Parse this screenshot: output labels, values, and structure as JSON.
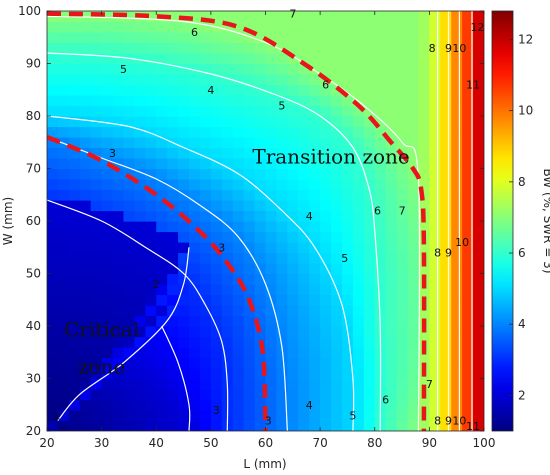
{
  "chart_data": {
    "type": "heatmap",
    "xlabel": "L (mm)",
    "ylabel": "W (mm)",
    "colorbar_label": "BW (%, SWR = 3)",
    "xlim": [
      20,
      100
    ],
    "ylim": [
      20,
      100
    ],
    "clim": [
      1,
      12.8
    ],
    "x_ticks": [
      20,
      30,
      40,
      50,
      60,
      70,
      80,
      90,
      100
    ],
    "y_ticks": [
      20,
      30,
      40,
      50,
      60,
      70,
      80,
      90,
      100
    ],
    "colorbar_ticks": [
      2,
      4,
      6,
      8,
      10,
      12
    ],
    "colormap": "jet",
    "contour_line_color": "#ffffff",
    "boundary_line_color": "#e8161b",
    "contour_levels": [
      {
        "level": 2,
        "points": [
          [
            22,
            22
          ],
          [
            26,
            27
          ],
          [
            34,
            33
          ],
          [
            42,
            41
          ],
          [
            45,
            48
          ],
          [
            46,
            55
          ],
          [
            46,
            20
          ]
        ]
      },
      {
        "level": 3,
        "points": [
          [
            20,
            64
          ],
          [
            30,
            60
          ],
          [
            38,
            55
          ],
          [
            45,
            50
          ],
          [
            49,
            44
          ],
          [
            52,
            37
          ],
          [
            53,
            29
          ],
          [
            53,
            20
          ]
        ]
      },
      {
        "level": 4,
        "points": [
          [
            20,
            76
          ],
          [
            30,
            72
          ],
          [
            40,
            68
          ],
          [
            48,
            63
          ],
          [
            55,
            57
          ],
          [
            60,
            48
          ],
          [
            63,
            36
          ],
          [
            64,
            20
          ]
        ]
      },
      {
        "level": 5,
        "points": [
          [
            20,
            80
          ],
          [
            35,
            78
          ],
          [
            45,
            74
          ],
          [
            55,
            69
          ],
          [
            63,
            62
          ],
          [
            69,
            55
          ],
          [
            74,
            44
          ],
          [
            76,
            30
          ],
          [
            76,
            20
          ]
        ]
      },
      {
        "level": 6,
        "points": [
          [
            20,
            92
          ],
          [
            35,
            91
          ],
          [
            50,
            88
          ],
          [
            62,
            84
          ],
          [
            70,
            80
          ],
          [
            76,
            74
          ],
          [
            79,
            66
          ],
          [
            80,
            58
          ],
          [
            81,
            40
          ],
          [
            81,
            20
          ]
        ]
      },
      {
        "level": 7,
        "points": [
          [
            20,
            99
          ],
          [
            45,
            98
          ],
          [
            60,
            94
          ],
          [
            70,
            88
          ],
          [
            78,
            82
          ],
          [
            85,
            75
          ],
          [
            88,
            68
          ],
          [
            88,
            20
          ]
        ]
      },
      {
        "level": 8,
        "points": [
          [
            91.5,
            100
          ],
          [
            91.5,
            20
          ]
        ]
      },
      {
        "level": 9,
        "points": [
          [
            93.5,
            100
          ],
          [
            93.5,
            20
          ]
        ]
      },
      {
        "level": 10,
        "points": [
          [
            95.5,
            100
          ],
          [
            95.5,
            20
          ]
        ]
      },
      {
        "level": 11,
        "points": [
          [
            97.8,
            100
          ],
          [
            97.8,
            20
          ]
        ]
      }
    ],
    "contour_labels": [
      {
        "text": "2",
        "x": 40,
        "y": 48
      },
      {
        "text": "2",
        "x": 22,
        "y": 23
      },
      {
        "text": "3",
        "x": 32,
        "y": 73
      },
      {
        "text": "3",
        "x": 52,
        "y": 55
      },
      {
        "text": "3",
        "x": 51,
        "y": 24
      },
      {
        "text": "3",
        "x": 60.5,
        "y": 22
      },
      {
        "text": "4",
        "x": 50,
        "y": 85
      },
      {
        "text": "4",
        "x": 68,
        "y": 61
      },
      {
        "text": "4",
        "x": 68,
        "y": 25
      },
      {
        "text": "5",
        "x": 34,
        "y": 89
      },
      {
        "text": "5",
        "x": 63,
        "y": 82
      },
      {
        "text": "5",
        "x": 74.5,
        "y": 53
      },
      {
        "text": "5",
        "x": 76,
        "y": 23
      },
      {
        "text": "6",
        "x": 47,
        "y": 96
      },
      {
        "text": "6",
        "x": 71,
        "y": 86
      },
      {
        "text": "6",
        "x": 80.5,
        "y": 62
      },
      {
        "text": "6",
        "x": 82,
        "y": 26
      },
      {
        "text": "7",
        "x": 65,
        "y": 99.5
      },
      {
        "text": "7",
        "x": 85,
        "y": 62
      },
      {
        "text": "7",
        "x": 90,
        "y": 29
      },
      {
        "text": "8",
        "x": 90.5,
        "y": 93
      },
      {
        "text": "8",
        "x": 91.5,
        "y": 54
      },
      {
        "text": "8",
        "x": 91.5,
        "y": 22
      },
      {
        "text": "9",
        "x": 93.5,
        "y": 93
      },
      {
        "text": "9",
        "x": 93.5,
        "y": 54
      },
      {
        "text": "9",
        "x": 93.5,
        "y": 22
      },
      {
        "text": "10",
        "x": 95.5,
        "y": 93
      },
      {
        "text": "10",
        "x": 96,
        "y": 56
      },
      {
        "text": "10",
        "x": 95.5,
        "y": 22
      },
      {
        "text": "11",
        "x": 98,
        "y": 86
      },
      {
        "text": "11",
        "x": 98,
        "y": 21
      },
      {
        "text": "12",
        "x": 98.8,
        "y": 97
      }
    ],
    "boundaries": [
      {
        "name": "critical",
        "points": [
          [
            20,
            76
          ],
          [
            30,
            71.5
          ],
          [
            40,
            65
          ],
          [
            48,
            58
          ],
          [
            53,
            52
          ],
          [
            57,
            45
          ],
          [
            59.5,
            35
          ],
          [
            60,
            20
          ]
        ]
      },
      {
        "name": "transition",
        "points": [
          [
            20,
            99.5
          ],
          [
            40,
            99
          ],
          [
            55,
            97
          ],
          [
            67,
            90
          ],
          [
            77,
            82
          ],
          [
            83,
            75
          ],
          [
            87,
            70
          ],
          [
            88.5,
            66
          ],
          [
            89,
            55
          ],
          [
            89,
            20
          ]
        ]
      }
    ],
    "annotations": [
      {
        "text": "Transition zone",
        "x": 72,
        "y": 71
      },
      {
        "text": "Critical",
        "x": 30,
        "y": 38
      },
      {
        "text": "zone",
        "x": 30,
        "y": 31
      }
    ]
  }
}
